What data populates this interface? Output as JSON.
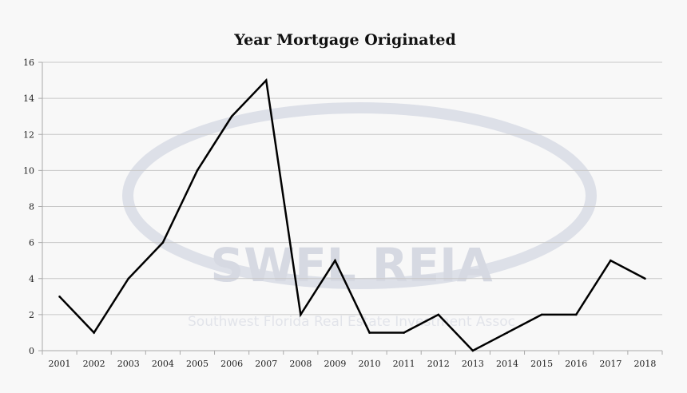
{
  "chart_data": {
    "type": "line",
    "title": "Year Mortgage Originated",
    "xlabel": "",
    "ylabel": "",
    "categories": [
      "2001",
      "2002",
      "2003",
      "2004",
      "2005",
      "2006",
      "2007",
      "2008",
      "2009",
      "2010",
      "2011",
      "2012",
      "2013",
      "2014",
      "2015",
      "2016",
      "2017",
      "2018"
    ],
    "values": [
      3,
      1,
      4,
      6,
      10,
      13,
      15,
      2,
      5,
      1,
      1,
      2,
      0,
      1,
      2,
      2,
      5,
      4
    ],
    "ylim": [
      0,
      16
    ],
    "yticks": [
      0,
      2,
      4,
      6,
      8,
      10,
      12,
      14,
      16
    ],
    "grid": true,
    "legend": "none",
    "line_color": "#000000",
    "grid_color": "#c8c8c8"
  },
  "watermark": {
    "logo_text": "SWFL REIA",
    "tagline": "Southwest Florida Real Estate Investment Assoc"
  }
}
